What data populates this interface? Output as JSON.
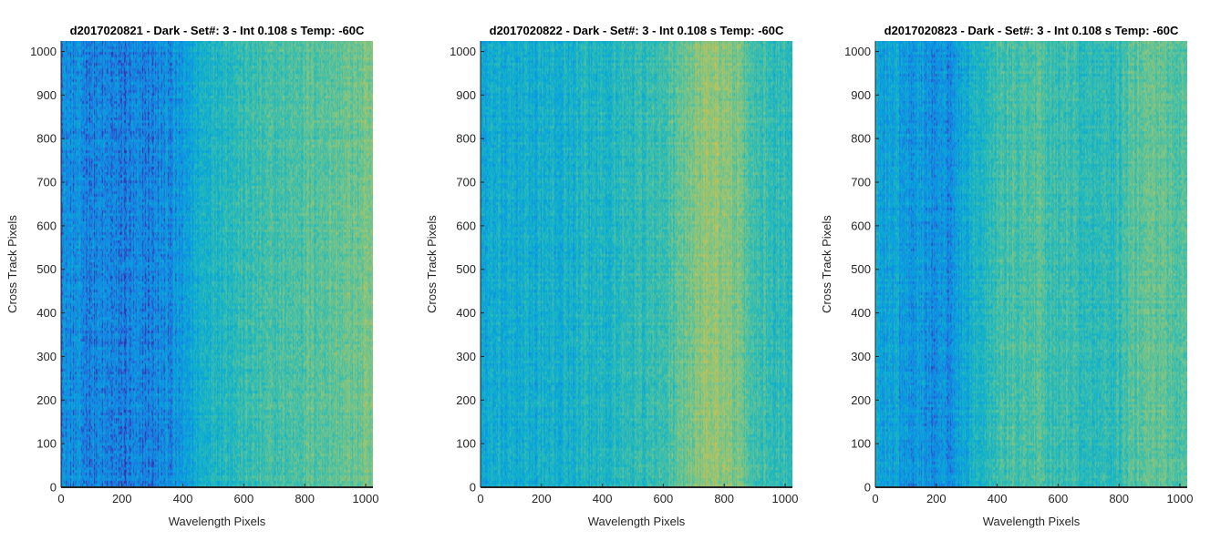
{
  "chart_data": [
    {
      "type": "heatmap",
      "title": "d2017020821 - Dark - Set#: 3 - Int 0.108 s Temp: -60C",
      "xlabel": "Wavelength Pixels",
      "ylabel": "Cross Track Pixels",
      "xlim": [
        0,
        1024
      ],
      "ylim": [
        0,
        1024
      ],
      "xticks": [
        "0",
        "200",
        "400",
        "600",
        "800",
        "1000"
      ],
      "yticks": [
        "0",
        "100",
        "200",
        "300",
        "400",
        "500",
        "600",
        "700",
        "800",
        "900",
        "1000"
      ],
      "column_profile": {
        "x": [
          0,
          100,
          200,
          300,
          400,
          450,
          500,
          600,
          700,
          800,
          900,
          1000,
          1024
        ],
        "level": [
          0.2,
          0.17,
          0.14,
          0.16,
          0.22,
          0.35,
          0.42,
          0.46,
          0.5,
          0.56,
          0.58,
          0.62,
          0.62
        ]
      },
      "colormap": [
        "#3e26a8",
        "#1a7ee4",
        "#08a0e0",
        "#16b4c6",
        "#3dbfab",
        "#74c48c",
        "#a5c46a",
        "#d3bf4c",
        "#f5c731"
      ]
    },
    {
      "type": "heatmap",
      "title": "d2017020822 - Dark - Set#: 3 - Int 0.108 s Temp: -60C",
      "xlabel": "Wavelength Pixels",
      "ylabel": "Cross Track Pixels",
      "xlim": [
        0,
        1024
      ],
      "ylim": [
        0,
        1024
      ],
      "xticks": [
        "0",
        "200",
        "400",
        "600",
        "800",
        "1000"
      ],
      "yticks": [
        "0",
        "100",
        "200",
        "300",
        "400",
        "500",
        "600",
        "700",
        "800",
        "900",
        "1000"
      ],
      "column_profile": {
        "x": [
          0,
          100,
          200,
          300,
          400,
          500,
          600,
          650,
          700,
          750,
          800,
          850,
          900,
          1000,
          1024
        ],
        "level": [
          0.3,
          0.33,
          0.34,
          0.36,
          0.4,
          0.44,
          0.48,
          0.56,
          0.66,
          0.72,
          0.7,
          0.6,
          0.5,
          0.46,
          0.46
        ]
      },
      "colormap": [
        "#3e26a8",
        "#1a7ee4",
        "#08a0e0",
        "#16b4c6",
        "#3dbfab",
        "#74c48c",
        "#a5c46a",
        "#d3bf4c",
        "#f5c731"
      ]
    },
    {
      "type": "heatmap",
      "title": "d2017020823 - Dark - Set#: 3 - Int 0.108 s Temp: -60C",
      "xlabel": "Wavelength Pixels",
      "ylabel": "Cross Track Pixels",
      "xlim": [
        0,
        1024
      ],
      "ylim": [
        0,
        1024
      ],
      "xticks": [
        "0",
        "200",
        "400",
        "600",
        "800",
        "1000"
      ],
      "yticks": [
        "0",
        "100",
        "200",
        "300",
        "400",
        "500",
        "600",
        "700",
        "800",
        "900",
        "1000"
      ],
      "column_profile": {
        "x": [
          0,
          100,
          200,
          250,
          300,
          350,
          400,
          500,
          600,
          700,
          780,
          850,
          900,
          950,
          1000,
          1024
        ],
        "level": [
          0.32,
          0.26,
          0.2,
          0.22,
          0.32,
          0.42,
          0.5,
          0.54,
          0.5,
          0.44,
          0.42,
          0.56,
          0.6,
          0.58,
          0.56,
          0.56
        ]
      },
      "colormap": [
        "#3e26a8",
        "#1a7ee4",
        "#08a0e0",
        "#16b4c6",
        "#3dbfab",
        "#74c48c",
        "#a5c46a",
        "#d3bf4c",
        "#f5c731"
      ]
    }
  ]
}
